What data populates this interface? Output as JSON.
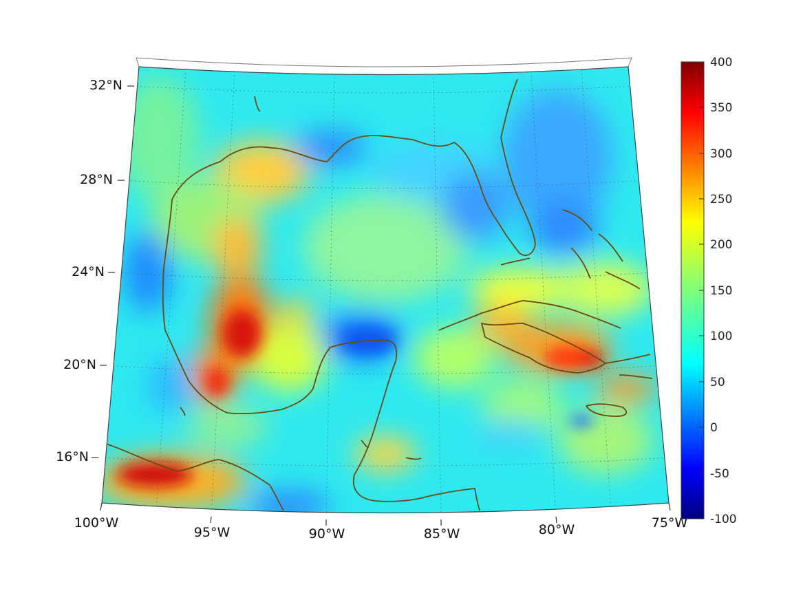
{
  "map": {
    "lon_ticks": [
      "100°W",
      "95°W",
      "90°W",
      "85°W",
      "80°W",
      "75°W"
    ],
    "lat_ticks": [
      "32°N",
      "28°N",
      "24°N",
      "20°N",
      "16°N"
    ],
    "lon_range": [
      -100,
      -75
    ],
    "lat_range": [
      14.5,
      32.5
    ],
    "grid": "dotted",
    "coastline_color": "#6b4a12"
  },
  "colorbar": {
    "ticks": [
      "400",
      "350",
      "300",
      "250",
      "200",
      "150",
      "100",
      "50",
      "0",
      "-50",
      "-100"
    ],
    "range": [
      -100,
      400
    ],
    "colormap": "jet"
  }
}
